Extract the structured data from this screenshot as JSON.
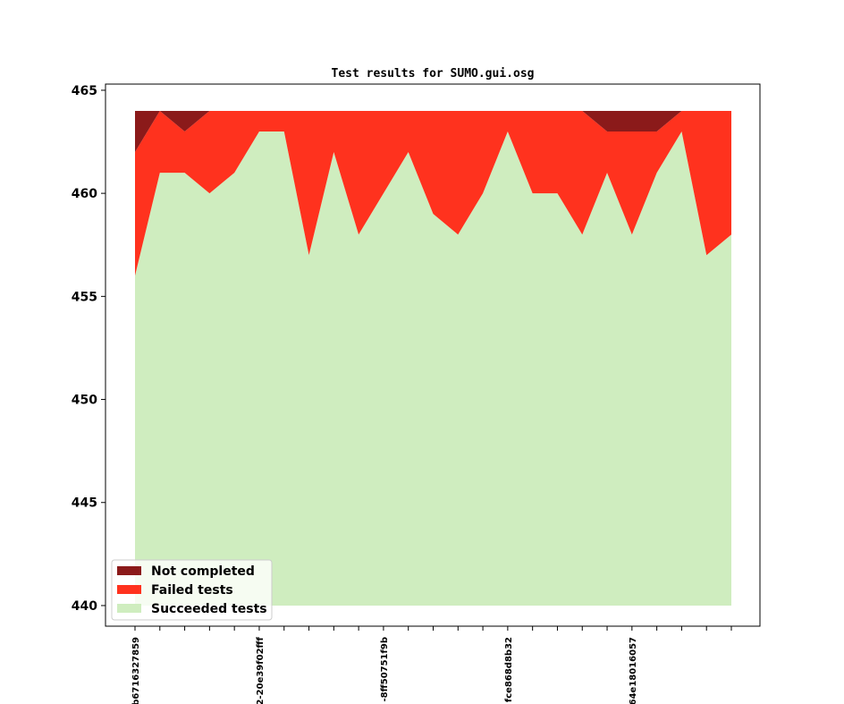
{
  "chart_data": {
    "type": "area",
    "title": "Test results for SUMO.gui.osg",
    "xlabel": "",
    "ylabel": "",
    "ylim": [
      439,
      465.3
    ],
    "yticks": [
      440,
      445,
      450,
      455,
      460,
      465
    ],
    "x_tick_labels": [
      "b6716327859",
      "2-20e39f02fff",
      "-8ff50751f9b",
      "fce868d8b32",
      "64e18016057"
    ],
    "x_tick_label_positions": [
      0,
      5,
      10,
      15,
      20
    ],
    "num_points": 25,
    "stack_base": 440,
    "series": [
      {
        "name": "Succeeded tests",
        "color": "#cfedbf",
        "values": [
          456,
          461,
          461,
          460,
          461,
          463,
          463,
          457,
          462,
          458,
          460,
          462,
          459,
          458,
          460,
          463,
          460,
          460,
          458,
          461,
          458,
          461,
          463,
          457,
          458
        ]
      },
      {
        "name": "Failed tests",
        "color": "#ff321e",
        "values": [
          6,
          3,
          2,
          4,
          3,
          1,
          1,
          7,
          2,
          6,
          4,
          2,
          5,
          6,
          4,
          1,
          4,
          4,
          6,
          2,
          5,
          2,
          1,
          7,
          6
        ]
      },
      {
        "name": "Not completed",
        "color": "#8b1a1a",
        "values": [
          2,
          0,
          1,
          0,
          0,
          0,
          0,
          0,
          0,
          0,
          0,
          0,
          0,
          0,
          0,
          0,
          0,
          0,
          0,
          1,
          1,
          1,
          0,
          0,
          0
        ]
      }
    ],
    "legend": {
      "placement": "lower-left",
      "entries": [
        "Not completed",
        "Failed tests",
        "Succeeded tests"
      ]
    },
    "grid": false
  }
}
